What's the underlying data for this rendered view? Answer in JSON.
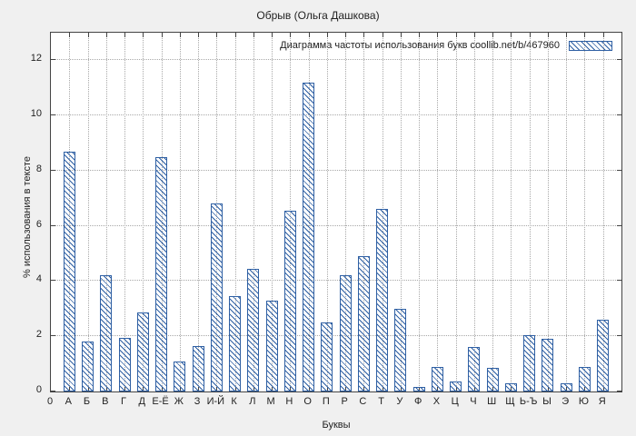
{
  "title": "Обрыв (Ольга Дашкова)",
  "legend": {
    "label": "Диаграмма частоты использования букв  coollib.net/b/467960"
  },
  "axes": {
    "xlabel": "Буквы",
    "ylabel": "% использования в тексте",
    "x_origin_label": "0"
  },
  "colors": {
    "accent": "#2e5fa3",
    "background": "#f0f0f0",
    "grid": "#a8a8a8"
  },
  "chart_data": {
    "type": "bar",
    "title": "Обрыв (Ольга Дашкова)",
    "legend_label": "Диаграмма частоты использования букв  coollib.net/b/467960",
    "xlabel": "Буквы",
    "ylabel": "% использования в тексте",
    "ylim": [
      0,
      13
    ],
    "yticks": [
      0,
      2,
      4,
      6,
      8,
      10,
      12
    ],
    "grid": true,
    "legend_position": "top-right-inside",
    "fill_style": "diagonal-hatch",
    "x_origin_label": "0",
    "categories": [
      "А",
      "Б",
      "В",
      "Г",
      "Д",
      "Е-Ё",
      "Ж",
      "З",
      "И-Й",
      "К",
      "Л",
      "М",
      "Н",
      "О",
      "П",
      "Р",
      "С",
      "Т",
      "У",
      "Ф",
      "Х",
      "Ц",
      "Ч",
      "Ш",
      "Щ",
      "Ь-Ъ",
      "Ы",
      "Э",
      "Ю",
      "Я"
    ],
    "values": [
      8.7,
      1.8,
      4.2,
      1.95,
      2.85,
      8.5,
      1.1,
      1.65,
      6.8,
      3.45,
      4.45,
      3.3,
      6.55,
      11.2,
      2.5,
      4.2,
      4.9,
      6.6,
      3.0,
      0.15,
      0.9,
      0.35,
      1.6,
      0.85,
      0.3,
      2.05,
      1.9,
      0.3,
      0.9,
      2.6
    ]
  }
}
